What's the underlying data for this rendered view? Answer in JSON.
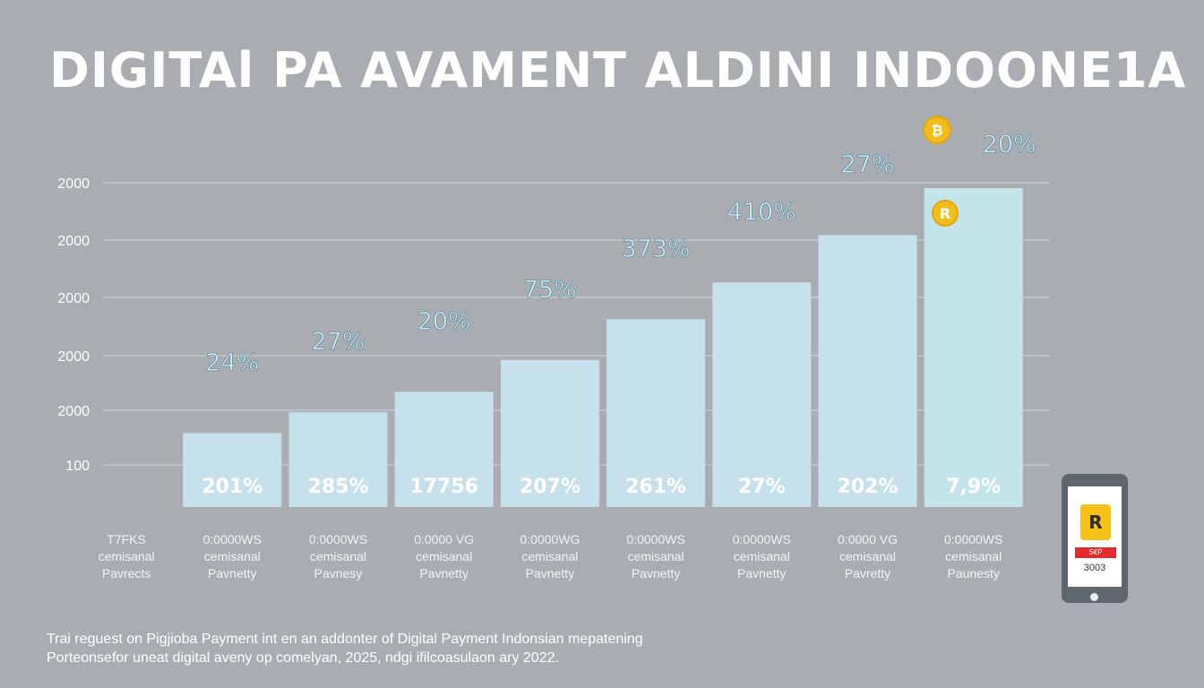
{
  "chart_data": {
    "type": "bar",
    "title": "DIGITAl PA AVAMENT ALDINI INDOONE1A",
    "y_tick_labels": [
      "2000",
      "2000",
      "2000",
      "2000",
      "2000",
      "100"
    ],
    "categories": [
      {
        "line1": "T7FKS",
        "line2": "cemisanal",
        "line3": "Pavrects"
      },
      {
        "line1": "0:0000WS",
        "line2": "cemisanal",
        "line3": "Pavnetty"
      },
      {
        "line1": "0:0000WS",
        "line2": "cemisanal",
        "line3": "Pavnesy"
      },
      {
        "line1": "0:0000 VG",
        "line2": "cemisanal",
        "line3": "Pavnetty"
      },
      {
        "line1": "0:0000WG",
        "line2": "cemisanal",
        "line3": "Pavnetty"
      },
      {
        "line1": "0:0000WS",
        "line2": "cemisanal",
        "line3": "Pavnetty"
      },
      {
        "line1": "0:0000WS",
        "line2": "cemisanal",
        "line3": "Pavnetty"
      },
      {
        "line1": "0:0000 VG",
        "line2": "cemisanal",
        "line3": "Pavretty"
      },
      {
        "line1": "0:0000WS",
        "line2": "cemisanal",
        "line3": "Paunesty"
      }
    ],
    "values": [
      null,
      1670,
      2140,
      2600,
      3320,
      4240,
      5070,
      6140,
      7200
    ],
    "ylim_note": "unlabeled numeric axis; values estimated from bar heights",
    "above_labels": [
      null,
      "24%",
      "27%",
      "20%",
      "75%",
      "373%",
      "410%",
      "27%",
      "20%"
    ],
    "inside_labels": [
      null,
      "201%",
      "285%",
      "17756",
      "207%",
      "261%",
      "27%",
      "202%",
      "7,9%"
    ],
    "grid": true,
    "highlight_index": 8
  },
  "colors": {
    "background": "#a9acb0",
    "bar": "#c7e1ec",
    "bar_highlight": "#c3e5ea",
    "coin": "#f2bd1c",
    "badge": "#e52b2b"
  },
  "icons": {
    "coin_top": "bitcoin-coin-icon",
    "coin_bar": "rupiah-coin-icon",
    "coin_top_glyph": "₿",
    "coin_bar_glyph": "R",
    "phone": "smartphone-payment-icon"
  },
  "phone": {
    "app_glyph": "R",
    "badge_text": "S€P",
    "amount": "3003"
  },
  "footnote": {
    "line1": "Trai reguest on Pigjioba Payment int en an addonter of Digital Payment Indonsian mepatening",
    "line2": "Porteonsefor uneat digital aveny op comelyan, 2025, ndgi ifilcoasulaon ary 2022."
  }
}
